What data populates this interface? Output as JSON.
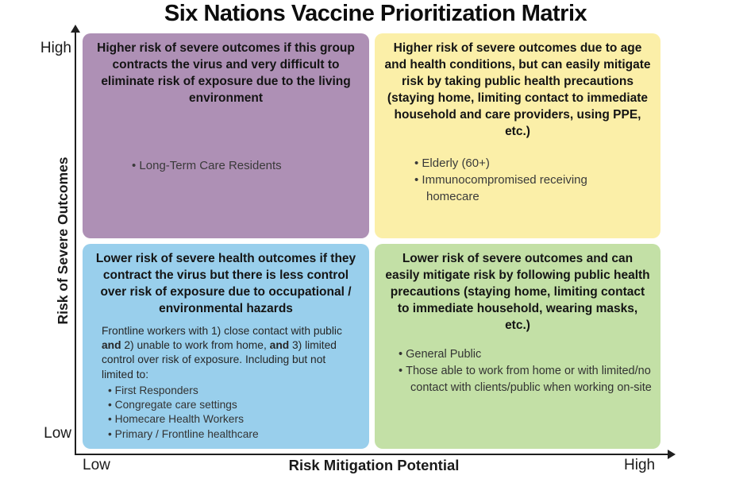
{
  "title": "Six Nations Vaccine Prioritization Matrix",
  "y_axis": {
    "label": "Risk of Severe Outcomes",
    "top_label": "High",
    "bottom_label": "Low"
  },
  "x_axis": {
    "label": "Risk Mitigation Potential",
    "left_label": "Low",
    "right_label": "High"
  },
  "quadrants": {
    "top_left": {
      "color": "#AE90B5",
      "header": "Higher risk of severe outcomes if this group contracts the virus and very difficult to eliminate risk of exposure due to the living environment",
      "bullets": [
        "Long-Term Care Residents"
      ]
    },
    "top_right": {
      "color": "#FBEFA8",
      "header": "Higher risk of severe outcomes due to age and health conditions, but can easily mitigate risk by taking public health precautions (staying home, limiting contact to immediate household and care providers, using PPE, etc.)",
      "bullets": [
        "Elderly (60+)",
        "Immunocompromised receiving homecare"
      ]
    },
    "bottom_left": {
      "color": "#99CFEC",
      "header": "Lower risk of severe health outcomes if they contract the virus but there is less control over risk of exposure due to occupational / environmental hazards",
      "body_parts": {
        "part1": "Frontline workers with 1) close contact with public ",
        "bold1": "and",
        "part2": " 2) unable to work from home, ",
        "bold2": "and",
        "part3": " 3) limited control over risk of exposure. Including but not limited to:"
      },
      "bullets": [
        "First Responders",
        "Congregate care settings",
        "Homecare Health Workers",
        "Primary / Frontline healthcare"
      ]
    },
    "bottom_right": {
      "color": "#C3E0A6",
      "header": "Lower risk of severe outcomes and can easily mitigate risk by following public health precautions (staying home, limiting contact to immediate household, wearing masks, etc.)",
      "bullets": [
        "General Public",
        "Those able to work from home or with limited/no contact with clients/public when working on-site"
      ]
    }
  }
}
